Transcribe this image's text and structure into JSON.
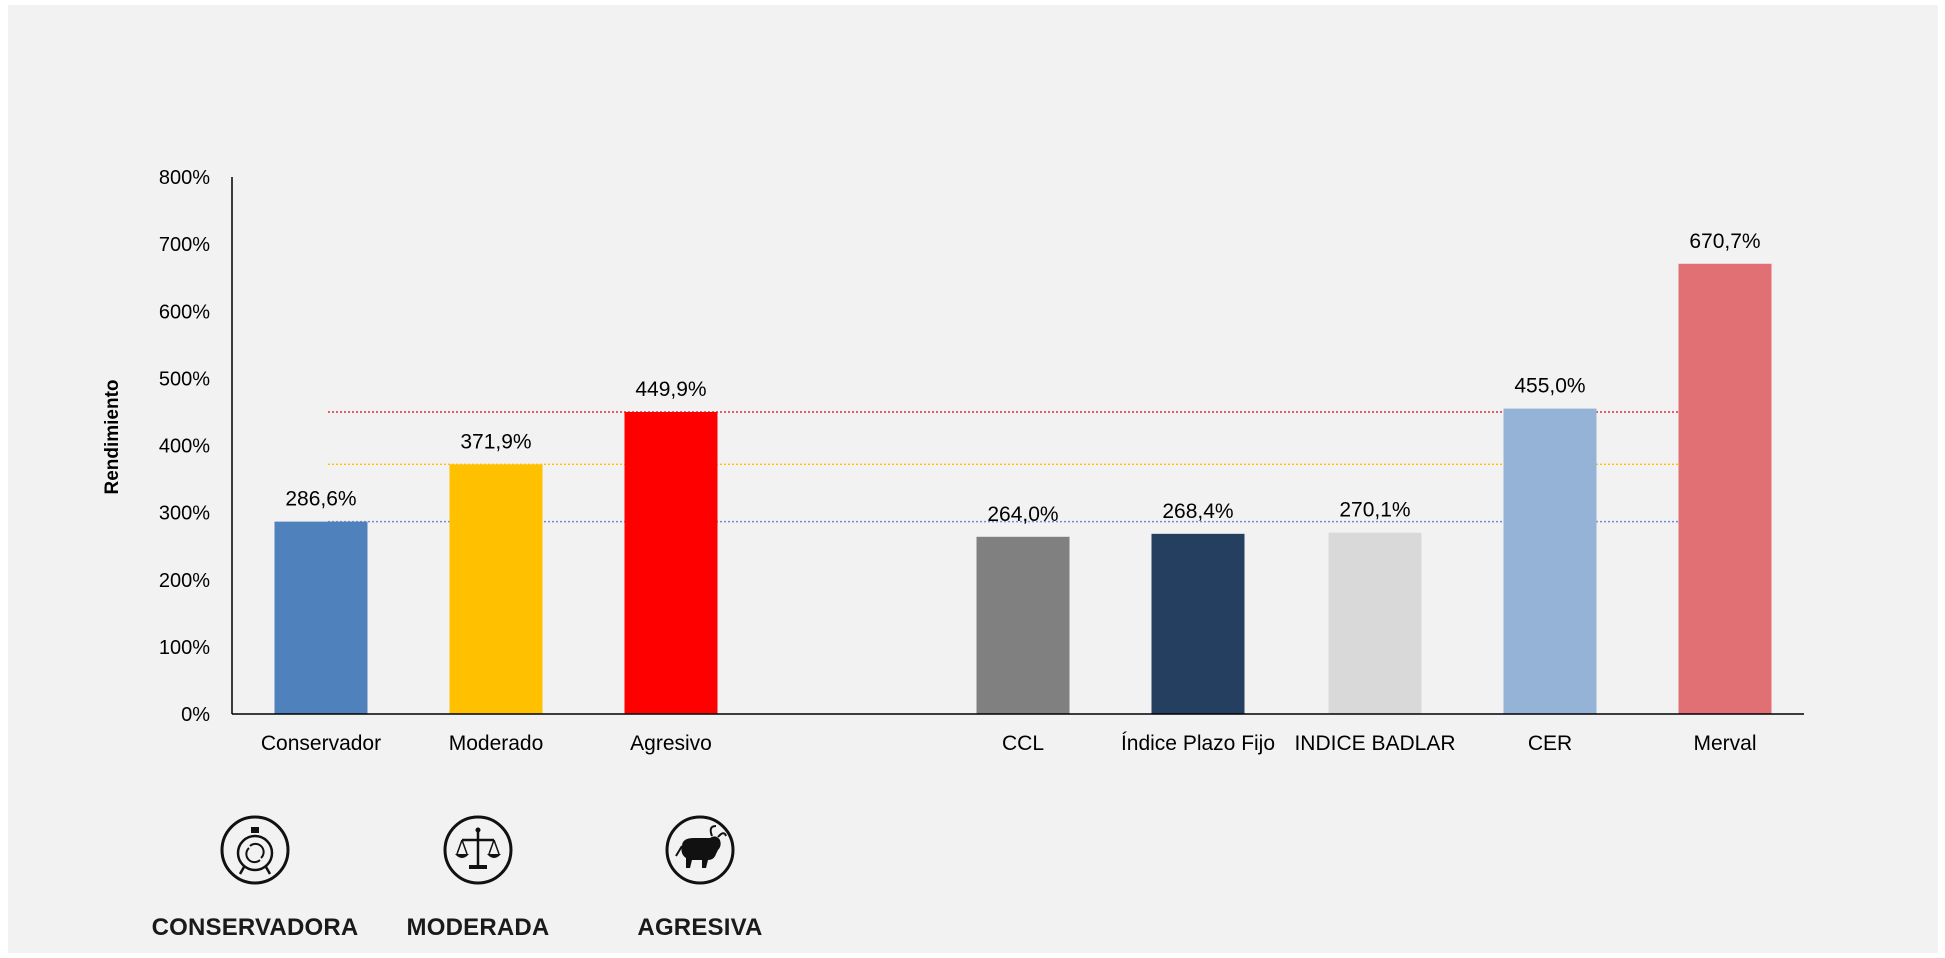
{
  "chart_data": {
    "type": "bar",
    "ylabel": "Rendimiento",
    "ylim": [
      0,
      800
    ],
    "yticks": [
      "0%",
      "100%",
      "200%",
      "300%",
      "400%",
      "500%",
      "600%",
      "700%",
      "800%"
    ],
    "categories": [
      "Conservador",
      "Moderado",
      "Agresivo",
      "CCL",
      "Índice Plazo Fijo",
      "INDICE BADLAR",
      "CER",
      "Merval"
    ],
    "values": [
      286.6,
      371.9,
      449.9,
      264.0,
      268.4,
      270.1,
      455.0,
      670.7
    ],
    "data_labels": [
      "286,6%",
      "371,9%",
      "449,9%",
      "264,0%",
      "268,4%",
      "270,1%",
      "455,0%",
      "670,7%"
    ],
    "colors": [
      "#4f81bd",
      "#ffc000",
      "#ff0000",
      "#808080",
      "#243f60",
      "#d9d9d9",
      "#95b3d7",
      "#e07073"
    ],
    "reference_lines": [
      {
        "value": 286.6,
        "color": "#6f8fd0"
      },
      {
        "value": 371.9,
        "color": "#ffc000"
      },
      {
        "value": 449.9,
        "color": "#e0303a"
      }
    ],
    "grid": false
  },
  "profiles": [
    {
      "label": "CONSERVADORA",
      "icon": "stopwatch-icon"
    },
    {
      "label": "MODERADA",
      "icon": "scales-icon"
    },
    {
      "label": "AGRESIVA",
      "icon": "bull-icon"
    }
  ]
}
